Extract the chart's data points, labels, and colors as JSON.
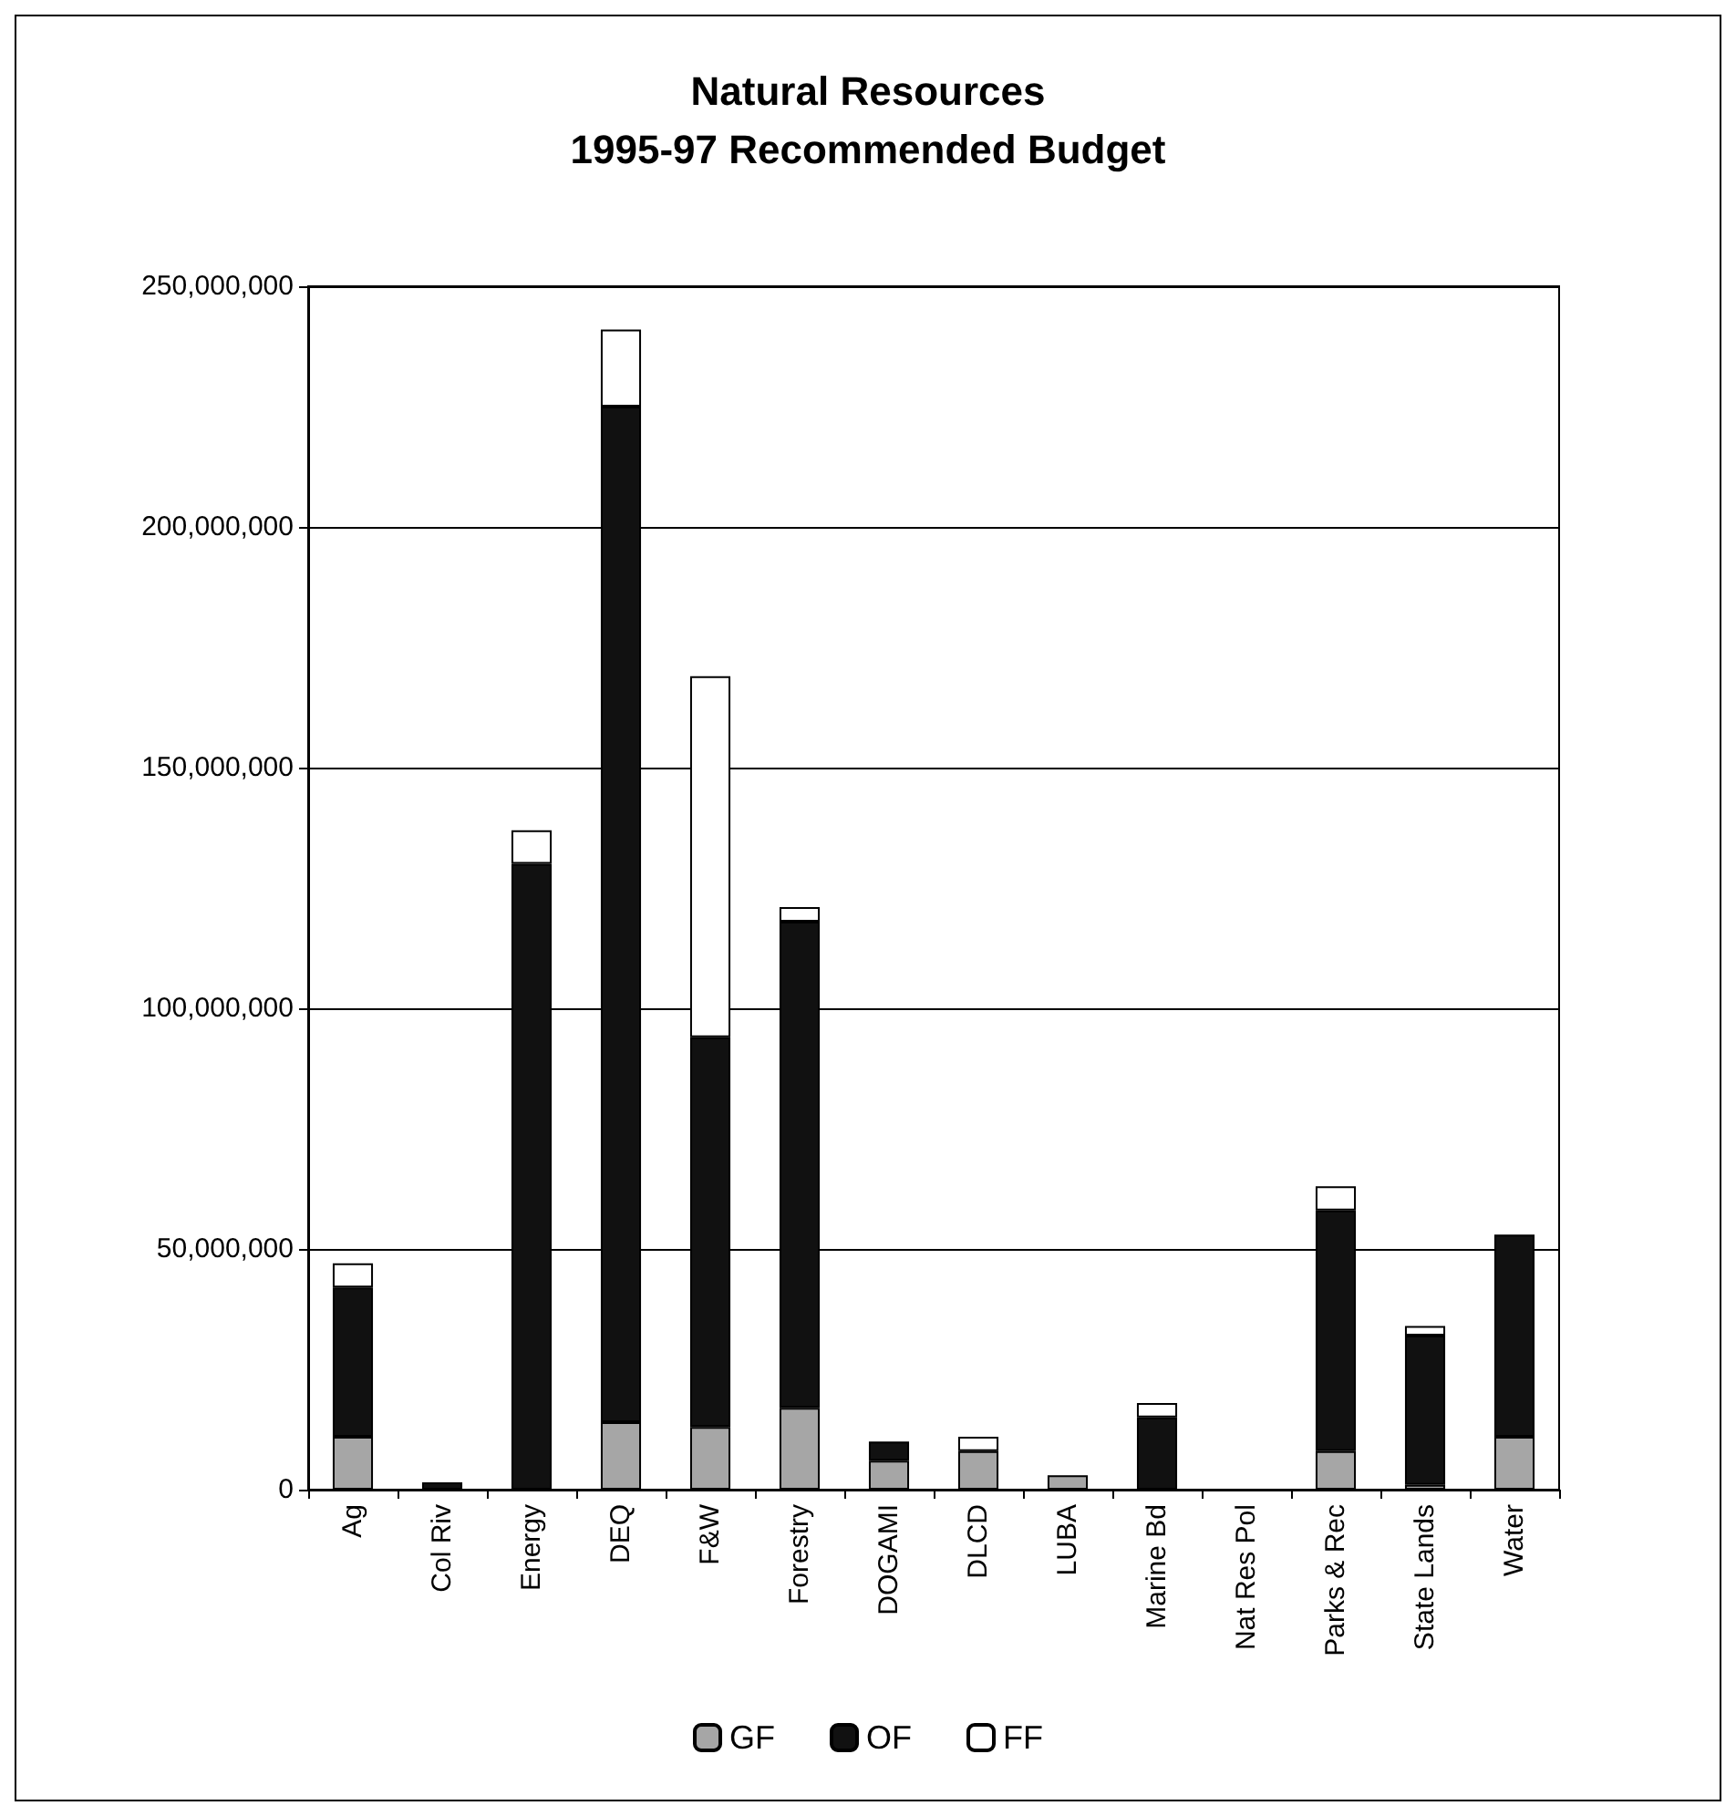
{
  "chart_data": {
    "type": "bar",
    "title": "Natural Resources\n1995-97 Recommended Budget",
    "categories": [
      "Ag",
      "Col Riv",
      "Energy",
      "DEQ",
      "F&W",
      "Forestry",
      "DOGAMI",
      "DLCD",
      "LUBA",
      "Marine Bd",
      "Nat Res Pol",
      "Parks & Rec",
      "State Lands",
      "Water"
    ],
    "stacked": true,
    "series": [
      {
        "name": "GF",
        "color": "#a6a6a6",
        "values": [
          11000000,
          0,
          0,
          14000000,
          13000000,
          17000000,
          6000000,
          8000000,
          3000000,
          0,
          0,
          8000000,
          1000000,
          11000000
        ]
      },
      {
        "name": "OF",
        "color": "#111111",
        "values": [
          31000000,
          1500000,
          130000000,
          211000000,
          81000000,
          101000000,
          4000000,
          0,
          0,
          15000000,
          0,
          50000000,
          31000000,
          42000000
        ]
      },
      {
        "name": "FF",
        "color": "#ffffff",
        "values": [
          5000000,
          0,
          7000000,
          16000000,
          75000000,
          3000000,
          0,
          3000000,
          0,
          3000000,
          0,
          5000000,
          2000000,
          0
        ]
      }
    ],
    "ylim": [
      0,
      250000000
    ],
    "yticks": [
      {
        "value": 0,
        "label": "0"
      },
      {
        "value": 50000000,
        "label": "50,000,000"
      },
      {
        "value": 100000000,
        "label": "100,000,000"
      },
      {
        "value": 150000000,
        "label": "150,000,000"
      },
      {
        "value": 200000000,
        "label": "200,000,000"
      },
      {
        "value": 250000000,
        "label": "250,000,000"
      }
    ],
    "grid": "y",
    "legend": "bottom"
  }
}
